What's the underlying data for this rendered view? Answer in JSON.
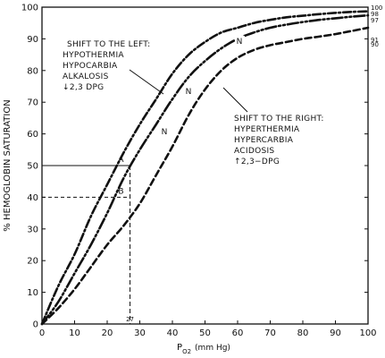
{
  "chart_data": {
    "type": "line",
    "title": "",
    "xlabel": "P",
    "xlabel_sub": "O2",
    "xlabel_unit": "(mm Hg)",
    "ylabel": "% HEMOGLOBIN SATURATION",
    "xlim": [
      0,
      100
    ],
    "ylim": [
      0,
      100
    ],
    "grid": false,
    "legend": "none",
    "x_ticks": [
      "0",
      "10",
      "20",
      "30",
      "40",
      "50",
      "60",
      "70",
      "80",
      "90",
      "100"
    ],
    "y_ticks": [
      "0",
      "10",
      "20",
      "30",
      "40",
      "50",
      "60",
      "70",
      "80",
      "90",
      "100"
    ],
    "x": [
      0,
      5,
      10,
      15,
      20,
      25,
      30,
      35,
      40,
      45,
      50,
      55,
      60,
      65,
      70,
      75,
      80,
      85,
      90,
      95,
      100
    ],
    "series": [
      {
        "style": "dash-dot",
        "values": [
          0,
          12,
          22,
          34,
          44,
          54,
          63,
          71,
          79,
          85,
          89,
          92,
          93.5,
          95,
          96,
          96.8,
          97.3,
          97.8,
          98.2,
          98.5,
          98.7
        ]
      },
      {
        "style": "dash-dot-dot",
        "values": [
          0,
          7,
          16,
          25,
          35,
          46,
          55,
          63,
          71,
          78,
          83,
          87,
          90,
          92,
          93.5,
          94.5,
          95.3,
          96,
          96.5,
          97,
          97.4
        ]
      },
      {
        "style": "dashed",
        "values": [
          0,
          5,
          11,
          18,
          25,
          31,
          38,
          47,
          56,
          66,
          74,
          80,
          84,
          86.5,
          88,
          89,
          90,
          90.7,
          91.5,
          92.5,
          93.5
        ]
      }
    ],
    "right_end_labels": [
      "100",
      "98",
      "97",
      "91",
      "90"
    ],
    "curve_labels": [
      "N",
      "N",
      "N"
    ],
    "points": [
      {
        "label": "A",
        "x": 27,
        "y": 50
      },
      {
        "label": "B",
        "x": 27,
        "y": 40
      }
    ],
    "x_marker": {
      "label": "27",
      "x": 27
    },
    "annotations": {
      "left_shift": [
        "SHIFT TO THE LEFT:",
        "HYPOTHERMIA",
        "HYPOCARBIA",
        "ALKALOSIS",
        "↓2,3  DPG"
      ],
      "right_shift": [
        "SHIFT TO THE RIGHT:",
        "HYPERTHERMIA",
        "HYPERCARBIA",
        "ACIDOSIS",
        "↑2,3−DPG"
      ]
    }
  }
}
